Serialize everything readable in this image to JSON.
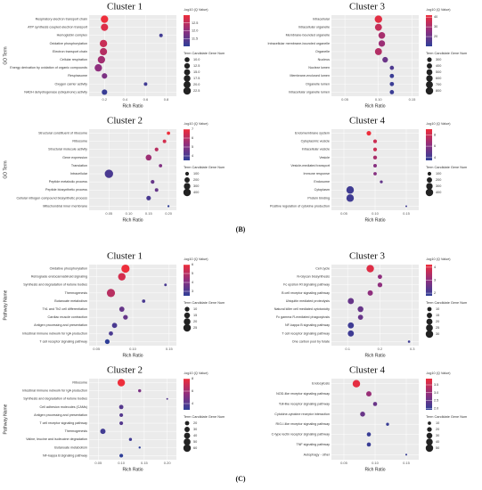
{
  "panel_labels": [
    "(B)",
    "(C)"
  ],
  "chart_data": [
    {
      "type": "bubble",
      "title": "Cluster 1",
      "ylabel": "GO Term",
      "xlabel": "Rich Ratio",
      "color_title": "-log10 (Q Value)",
      "size_title": "Term Candidate Gene Num",
      "categories": [
        "Respiratory electron transport chain",
        "ATP synthesis coupled electron transport",
        "Hemoglobin complex",
        "Oxidative phosphorylation",
        "Electron transport chain",
        "Cellular respiration",
        "Energy derivation by oxidation of organic compounds",
        "Respirasome",
        "Oxygen carrier activity",
        "NADH dehydrogenase (ubiquinone) activity"
      ],
      "rich_ratio": [
        0.2,
        0.2,
        0.75,
        0.19,
        0.19,
        0.17,
        0.14,
        0.2,
        0.6,
        0.2
      ],
      "q_values": [
        13,
        12.8,
        11.2,
        12.6,
        12.4,
        12.2,
        12,
        11.8,
        11.2,
        11.1
      ],
      "gene_nums": [
        22,
        21,
        5,
        22,
        21,
        22,
        22,
        12,
        5,
        12
      ],
      "xlim": [
        0.05,
        0.9
      ],
      "xticks": [
        0.2,
        0.4,
        0.6,
        0.8
      ],
      "clim": [
        11,
        13
      ],
      "cticks": [
        11.5,
        {
          "value": 12,
          "label": "12.0"
        },
        12.5
      ],
      "sticks": [
        {
          "value": 10,
          "label": "10.0"
        },
        12.5,
        {
          "value": 15,
          "label": "15.0"
        },
        17.5,
        {
          "value": 20,
          "label": "20.0"
        },
        22.5
      ],
      "colormap": [
        "#2f3f98",
        "#8f2f7e",
        "#ee2e3b"
      ]
    },
    {
      "type": "bubble",
      "title": "Cluster 3",
      "xlabel": "Rich Ratio",
      "color_title": "-log10 (Q Value)",
      "size_title": "Term Candidate Gene Num",
      "categories": [
        "Intracellular",
        "Intracellular organelle",
        "Membrane-bounded organelle",
        "Intracellular membrane-bounded organelle",
        "Organelle",
        "Nucleus",
        "Nuclear lumen",
        "Membrane-enclosed lumen",
        "Organelle lumen",
        "Intracellular organelle lumen"
      ],
      "rich_ratio": [
        0.1,
        0.1,
        0.105,
        0.105,
        0.1,
        0.11,
        0.12,
        0.12,
        0.12,
        0.12
      ],
      "q_values": [
        40,
        35,
        30,
        28,
        32,
        20,
        15,
        12,
        12,
        12
      ],
      "gene_nums": [
        800,
        700,
        650,
        600,
        700,
        450,
        250,
        260,
        260,
        260
      ],
      "xlim": [
        0.03,
        0.16
      ],
      "xticks": [
        0.05,
        {
          "value": 0.1,
          "label": "0.10"
        },
        0.15
      ],
      "clim": [
        10,
        42
      ],
      "cticks": [
        20,
        30,
        40
      ],
      "sticks": [
        300,
        400,
        500,
        600,
        700,
        800
      ],
      "colormap": [
        "#2f3f98",
        "#8f2f7e",
        "#ee2e3b"
      ]
    },
    {
      "type": "bubble",
      "title": "Cluster 2",
      "ylabel": "GO Term",
      "xlabel": "Rich Ratio",
      "color_title": "-log10 (Q Value)",
      "size_title": "Term Candidate Gene Num",
      "categories": [
        "Structural constituent of ribosome",
        "Ribosome",
        "Structural molecule activity",
        "Gene expression",
        "Translation",
        "Intracellular",
        "Peptide metabolic process",
        "Peptide biosynthetic process",
        "Cellular nitrogen compound biosynthetic process",
        "Mitochondrial inner membrane"
      ],
      "rich_ratio": [
        0.2,
        0.19,
        0.17,
        0.15,
        0.18,
        0.05,
        0.16,
        0.17,
        0.15,
        0.2
      ],
      "q_values": [
        7,
        6.5,
        6,
        5.5,
        5,
        4,
        4.5,
        4.5,
        4,
        3.5
      ],
      "gene_nums": [
        80,
        90,
        100,
        250,
        80,
        500,
        100,
        90,
        150,
        30
      ],
      "xlim": [
        0,
        0.22
      ],
      "xticks": [
        0.05,
        {
          "value": 0.1,
          "label": "0.10"
        },
        0.15,
        {
          "value": 0.2,
          "label": "0.20"
        }
      ],
      "clim": [
        3.5,
        7
      ],
      "cticks": [
        4,
        5,
        6,
        7
      ],
      "sticks": [
        100,
        200,
        300,
        400
      ],
      "colormap": [
        "#2f3f98",
        "#8f2f7e",
        "#ee2e3b"
      ]
    },
    {
      "type": "bubble",
      "title": "Cluster 4",
      "xlabel": "Rich Ratio",
      "color_title": "-log10 (Q Value)",
      "size_title": "Term Candidate Gene Num",
      "categories": [
        "Endomembrane system",
        "Cytoplasmic vesicle",
        "Intracellular vesicle",
        "Vesicle",
        "Vesicle-mediated transport",
        "Immune response",
        "Endosome",
        "Cytoplasm",
        "Protein binding",
        "Positive regulation of cytokine production"
      ],
      "rich_ratio": [
        0.09,
        0.1,
        0.1,
        0.1,
        0.1,
        0.1,
        0.11,
        0.06,
        0.06,
        0.15
      ],
      "q_values": [
        9,
        8,
        8,
        7,
        6,
        6,
        5,
        4,
        4,
        4
      ],
      "gene_nums": [
        150,
        100,
        100,
        110,
        90,
        80,
        60,
        400,
        400,
        20
      ],
      "xlim": [
        0.03,
        0.17
      ],
      "xticks": [
        0.05,
        {
          "value": 0.1,
          "label": "0.10"
        },
        0.15
      ],
      "clim": [
        3.5,
        9
      ],
      "cticks": [
        4,
        6,
        8
      ],
      "sticks": [
        100,
        200,
        300,
        400
      ],
      "colormap": [
        "#2f3f98",
        "#8f2f7e",
        "#ee2e3b"
      ]
    },
    {
      "type": "bubble",
      "title": "Cluster 1",
      "ylabel": "Pathway Name",
      "xlabel": "Rich Ratio",
      "color_title": "-log10 (Q Value)",
      "size_title": "Term Candidate Gene Num",
      "categories": [
        "Oxidative phosphorylation",
        "Retrograde endocannabinoid signaling",
        "Synthesis and degradation of ketone bodies",
        "Thermogenesis",
        "Butanoate metabolism",
        "Th1 and Th2 cell differentiation",
        "Cardiac muscle contraction",
        "Antigen processing and presentation",
        "Intestinal immune network for IgA production",
        "T cell receptor signaling pathway"
      ],
      "rich_ratio": [
        0.09,
        0.085,
        0.145,
        0.07,
        0.115,
        0.085,
        0.09,
        0.075,
        0.07,
        0.065
      ],
      "q_values": [
        6,
        5.5,
        3,
        5,
        3,
        3.5,
        3.5,
        3,
        3,
        2.5
      ],
      "gene_nums": [
        30,
        25,
        3,
        30,
        5,
        12,
        10,
        12,
        8,
        10
      ],
      "xlim": [
        0.04,
        0.16
      ],
      "xticks": [
        0.05,
        {
          "value": 0.1,
          "label": "0.10"
        },
        0.15
      ],
      "clim": [
        2.5,
        6
      ],
      "cticks": [
        3,
        4,
        5,
        6
      ],
      "sticks": [
        10,
        15,
        20,
        25
      ],
      "colormap": [
        "#2f3f98",
        "#8f2f7e",
        "#ee2e3b"
      ]
    },
    {
      "type": "bubble",
      "title": "Cluster 3",
      "xlabel": "Rich Ratio",
      "color_title": "-log10 (Q Value)",
      "size_title": "Term Candidate Gene Num",
      "categories": [
        "Cell cycle",
        "N-Glycan biosynthesis",
        "Fc epsilon RI signaling pathway",
        "B cell receptor signaling pathway",
        "Ubiquitin mediated proteolysis",
        "Natural killer cell mediated cytotoxicity",
        "Fc gamma R-mediated phagocytosis",
        "NF-kappa B signaling pathway",
        "T cell receptor signaling pathway",
        "One carbon pool by folate"
      ],
      "rich_ratio": [
        0.17,
        0.2,
        0.2,
        0.17,
        0.11,
        0.14,
        0.14,
        0.11,
        0.11,
        0.29
      ],
      "q_values": [
        4,
        3,
        3,
        3,
        2.5,
        2.5,
        2.5,
        2,
        2,
        2
      ],
      "gene_nums": [
        30,
        10,
        12,
        15,
        20,
        18,
        14,
        20,
        20,
        3
      ],
      "xlim": [
        0.05,
        0.32
      ],
      "xticks": [
        0.1,
        0.2,
        0.3
      ],
      "clim": [
        1.8,
        4.2
      ],
      "cticks": [
        2,
        3,
        4
      ],
      "sticks": [
        10,
        15,
        20,
        25,
        30
      ],
      "colormap": [
        "#2f3f98",
        "#8f2f7e",
        "#ee2e3b"
      ]
    },
    {
      "type": "bubble",
      "title": "Cluster 2",
      "ylabel": "Pathway Name",
      "xlabel": "Rich Ratio",
      "color_title": "-log10 (Q Value)",
      "size_title": "Term Candidate Gene Num",
      "categories": [
        "Ribosome",
        "Intestinal immune network for IgA production",
        "Synthesis and degradation of ketone bodies",
        "Cell adhesion molecules (CAMs)",
        "Antigen processing and presentation",
        "T cell receptor signaling pathway",
        "Thermogenesis",
        "Valine, leucine and isoleucine degradation",
        "Butanoate metabolism",
        "NF-kappa B signaling pathway"
      ],
      "rich_ratio": [
        0.1,
        0.14,
        0.2,
        0.1,
        0.1,
        0.1,
        0.06,
        0.12,
        0.14,
        0.1
      ],
      "q_values": [
        8,
        5,
        4,
        4,
        4,
        4,
        3.5,
        3.5,
        3,
        3
      ],
      "gene_nums": [
        60,
        10,
        3,
        20,
        15,
        15,
        30,
        10,
        5,
        15
      ],
      "xlim": [
        0.03,
        0.22
      ],
      "xticks": [
        0.05,
        {
          "value": 0.1,
          "label": "0.10"
        },
        0.15,
        {
          "value": 0.2,
          "label": "0.20"
        }
      ],
      "clim": [
        3,
        8
      ],
      "cticks": [
        4,
        6,
        8
      ],
      "sticks": [
        20,
        30,
        40,
        50,
        60
      ],
      "colormap": [
        "#2f3f98",
        "#8f2f7e",
        "#ee2e3b"
      ]
    },
    {
      "type": "bubble",
      "title": "Cluster 4",
      "xlabel": "Rich Ratio",
      "color_title": "-log10 (Q Value)",
      "size_title": "Term Candidate Gene Num",
      "categories": [
        "Endocytosis",
        "NOD-like receptor signaling pathway",
        "Toll-like receptor signaling pathway",
        "Cytokine-cytokine receptor interaction",
        "RIG-I-like receptor signaling pathway",
        "C-type lectin receptor signaling pathway",
        "TNF signaling pathway",
        "Autophagy - other"
      ],
      "rich_ratio": [
        0.07,
        0.09,
        0.1,
        0.08,
        0.12,
        0.09,
        0.09,
        0.15
      ],
      "q_values": [
        3.8,
        3,
        2.5,
        2.5,
        2,
        2,
        2,
        2
      ],
      "gene_nums": [
        50,
        25,
        15,
        22,
        8,
        15,
        15,
        3
      ],
      "xlim": [
        0.03,
        0.17
      ],
      "xticks": [
        0.05,
        {
          "value": 0.1,
          "label": "0.10"
        },
        0.15
      ],
      "clim": [
        1.9,
        3.9
      ],
      "cticks": [
        {
          "value": 2,
          "label": "2.0"
        },
        2.5,
        {
          "value": 3,
          "label": "3.0"
        },
        3.5
      ],
      "sticks": [
        10,
        20,
        30,
        40,
        50
      ],
      "colormap": [
        "#2f3f98",
        "#8f2f7e",
        "#ee2e3b"
      ]
    }
  ]
}
